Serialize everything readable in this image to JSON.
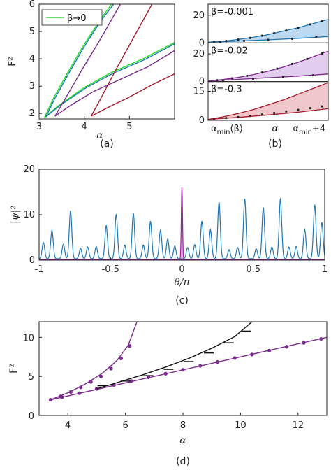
{
  "chart_data": [
    {
      "id": "a",
      "type": "line",
      "caption": "(a)",
      "xlabel": "α",
      "ylabel": "F²",
      "xlim": [
        3,
        6
      ],
      "ylim": [
        1.8,
        6
      ],
      "xticks": [
        "3",
        "4",
        "5"
      ],
      "yticks": [
        "2",
        "3",
        "4",
        "5",
        "6"
      ],
      "legend": {
        "label": "β→0",
        "color": "#22dd22",
        "placement": "top-left"
      },
      "series": [
        {
          "color": "#22dd22",
          "points": [
            [
              3.12,
              1.85
            ],
            [
              3.3,
              2.5
            ],
            [
              3.6,
              3.4
            ],
            [
              3.95,
              4.4
            ],
            [
              4.3,
              5.3
            ],
            [
              4.6,
              6.0
            ]
          ]
        },
        {
          "color": "#22dd22",
          "points": [
            [
              3.12,
              1.85
            ],
            [
              3.4,
              2.25
            ],
            [
              4.0,
              2.95
            ],
            [
              4.6,
              3.5
            ],
            [
              5.3,
              4.0
            ],
            [
              6.0,
              4.6
            ]
          ]
        },
        {
          "color": "#1f77b4",
          "points": [
            [
              3.15,
              1.88
            ],
            [
              3.35,
              2.55
            ],
            [
              3.65,
              3.45
            ],
            [
              4.0,
              4.45
            ],
            [
              4.35,
              5.35
            ],
            [
              4.65,
              6.0
            ]
          ]
        },
        {
          "color": "#1f77b4",
          "points": [
            [
              3.15,
              1.88
            ],
            [
              3.45,
              2.28
            ],
            [
              4.05,
              2.95
            ],
            [
              4.65,
              3.48
            ],
            [
              5.35,
              3.98
            ],
            [
              6.0,
              4.55
            ]
          ]
        },
        {
          "color": "#7b2a8e",
          "points": [
            [
              3.35,
              1.9
            ],
            [
              3.6,
              2.6
            ],
            [
              3.95,
              3.6
            ],
            [
              4.35,
              4.7
            ],
            [
              4.8,
              6.0
            ]
          ]
        },
        {
          "color": "#7b2a8e",
          "points": [
            [
              3.35,
              1.9
            ],
            [
              3.7,
              2.3
            ],
            [
              4.2,
              2.8
            ],
            [
              4.8,
              3.25
            ],
            [
              5.4,
              3.7
            ],
            [
              6.0,
              4.3
            ]
          ]
        },
        {
          "color": "#a31a2a",
          "points": [
            [
              4.15,
              1.9
            ],
            [
              4.35,
              2.5
            ],
            [
              4.7,
              3.6
            ],
            [
              5.1,
              4.8
            ],
            [
              5.5,
              6.0
            ]
          ]
        },
        {
          "color": "#a31a2a",
          "points": [
            [
              4.15,
              1.9
            ],
            [
              4.5,
              2.2
            ],
            [
              5.0,
              2.6
            ],
            [
              5.5,
              3.05
            ],
            [
              6.0,
              3.45
            ]
          ]
        }
      ]
    },
    {
      "id": "b",
      "type": "area",
      "caption": "(b)",
      "xlabel": "α",
      "xtick_left": "α_min(β)",
      "xtick_right": "α_min+4",
      "panels": [
        {
          "label": "β=-0.001",
          "color": "#1f77b4",
          "fill": "#bcd9ef",
          "ylim": [
            0,
            28
          ],
          "yticks": [
            "0",
            "20"
          ],
          "upper": [
            [
              0,
              0.5
            ],
            [
              0.5,
              1.2
            ],
            [
              1,
              2.5
            ],
            [
              1.5,
              4
            ],
            [
              2,
              6
            ],
            [
              2.5,
              8.5
            ],
            [
              3,
              11
            ],
            [
              3.5,
              14
            ],
            [
              4,
              17
            ]
          ],
          "lower": [
            [
              0,
              0.5
            ],
            [
              1,
              1.3
            ],
            [
              2,
              2.2
            ],
            [
              3,
              3.3
            ],
            [
              4,
              4.5
            ]
          ],
          "dots": [
            [
              0.2,
              0.6
            ],
            [
              0.6,
              1.4
            ],
            [
              1,
              2.4
            ],
            [
              1.4,
              3.6
            ],
            [
              1.8,
              5.2
            ],
            [
              2.2,
              7
            ],
            [
              2.6,
              8.9
            ],
            [
              3,
              11
            ],
            [
              3.4,
              13.4
            ],
            [
              3.8,
              15.8
            ],
            [
              0.4,
              0.7
            ],
            [
              1.2,
              1.5
            ],
            [
              2,
              2.2
            ],
            [
              2.8,
              3
            ],
            [
              3.6,
              4
            ]
          ]
        },
        {
          "label": "β=-0.02",
          "color": "#7b2a8e",
          "fill": "#e2cdee",
          "ylim": [
            0,
            28
          ],
          "yticks": [
            "0",
            "20"
          ],
          "upper": [
            [
              0,
              0.5
            ],
            [
              0.5,
              1.5
            ],
            [
              1,
              3
            ],
            [
              1.5,
              5
            ],
            [
              2,
              7.5
            ],
            [
              2.5,
              10.5
            ],
            [
              3,
              14
            ],
            [
              3.5,
              18
            ],
            [
              4,
              22
            ]
          ],
          "lower": [
            [
              0,
              0.5
            ],
            [
              1,
              1.6
            ],
            [
              2,
              2.8
            ],
            [
              3,
              4
            ],
            [
              4,
              5.5
            ]
          ],
          "dots": [
            [
              0.3,
              1
            ],
            [
              0.8,
              2.4
            ],
            [
              1.3,
              4.2
            ],
            [
              1.8,
              6.6
            ],
            [
              2.3,
              9.4
            ],
            [
              2.8,
              12.8
            ],
            [
              3.3,
              16.4
            ],
            [
              3.8,
              20.4
            ],
            [
              0.5,
              0.8
            ],
            [
              1.5,
              2
            ],
            [
              2.5,
              3.2
            ],
            [
              3.5,
              4.6
            ]
          ]
        },
        {
          "label": "β=-0.3",
          "color": "#a31a2a",
          "fill": "#f0c8cc",
          "ylim": [
            0,
            20
          ],
          "yticks": [
            "0",
            "15"
          ],
          "upper": [
            [
              0,
              0.5
            ],
            [
              0.5,
              1.8
            ],
            [
              1,
              3.5
            ],
            [
              1.5,
              5.5
            ],
            [
              2,
              8
            ],
            [
              2.5,
              10.5
            ],
            [
              3,
              13.5
            ],
            [
              3.5,
              16.5
            ],
            [
              4,
              19.5
            ]
          ],
          "lower": [
            [
              0,
              0.5
            ],
            [
              1,
              1.5
            ],
            [
              2,
              2.8
            ],
            [
              3,
              4.2
            ],
            [
              4,
              6
            ]
          ],
          "dots": [
            [
              0.2,
              0.7
            ],
            [
              0.6,
              1.2
            ],
            [
              1,
              1.7
            ],
            [
              1.4,
              2.3
            ],
            [
              1.8,
              3
            ],
            [
              2.2,
              3.8
            ],
            [
              2.6,
              4.6
            ],
            [
              3,
              5.4
            ],
            [
              3.4,
              6.3
            ],
            [
              3.8,
              7.2
            ]
          ]
        }
      ]
    },
    {
      "id": "c",
      "type": "line",
      "caption": "(c)",
      "xlabel": "θ/π",
      "ylabel": "|ψ|²",
      "xlim": [
        -1,
        1
      ],
      "ylim": [
        0,
        20
      ],
      "xticks": [
        "-1",
        "-0.5",
        "0",
        "0.5",
        "1"
      ],
      "yticks": [
        "0",
        "10",
        "20"
      ],
      "series": [
        {
          "color": "#1f77b4",
          "kind": "peaks",
          "peaks": [
            [
              -0.97,
              3.6
            ],
            [
              -0.91,
              6.3
            ],
            [
              -0.83,
              3.2
            ],
            [
              -0.78,
              10.6
            ],
            [
              -0.71,
              2.3
            ],
            [
              -0.66,
              2.6
            ],
            [
              -0.6,
              2.7
            ],
            [
              -0.53,
              7.3
            ],
            [
              -0.46,
              9.8
            ],
            [
              -0.4,
              3.0
            ],
            [
              -0.34,
              10.0
            ],
            [
              -0.27,
              3.0
            ],
            [
              -0.22,
              8.3
            ],
            [
              -0.15,
              6.3
            ],
            [
              -0.1,
              4.3
            ],
            [
              -0.05,
              2.8
            ],
            [
              0.04,
              2.5
            ],
            [
              0.09,
              3.1
            ],
            [
              0.14,
              8.3
            ],
            [
              0.2,
              6.4
            ],
            [
              0.26,
              12.5
            ],
            [
              0.33,
              2.0
            ],
            [
              0.39,
              2.5
            ],
            [
              0.44,
              13.2
            ],
            [
              0.52,
              2.2
            ],
            [
              0.57,
              11.3
            ],
            [
              0.63,
              2.6
            ],
            [
              0.69,
              13.3
            ],
            [
              0.75,
              2.6
            ],
            [
              0.8,
              2.7
            ],
            [
              0.86,
              6.4
            ],
            [
              0.93,
              11.9
            ],
            [
              0.98,
              8.0
            ]
          ]
        },
        {
          "color": "#a020a0",
          "kind": "spike",
          "peaks": [
            [
              0,
              16
            ]
          ]
        },
        {
          "color": "#a020a0",
          "kind": "baseline",
          "value": 0.08
        }
      ]
    },
    {
      "id": "d",
      "type": "scatter",
      "caption": "(d)",
      "xlabel": "α",
      "ylabel": "F²",
      "xlim": [
        3,
        13
      ],
      "ylim": [
        0,
        12
      ],
      "xticks": [
        "4",
        "6",
        "8",
        "10",
        "12"
      ],
      "yticks": [
        "0",
        "5",
        "10"
      ],
      "series": [
        {
          "color": "#7b2a8e",
          "kind": "line",
          "points": [
            [
              3.4,
              2.0
            ],
            [
              4,
              2.9
            ],
            [
              4.6,
              4.0
            ],
            [
              5.2,
              5.4
            ],
            [
              5.7,
              7.0
            ],
            [
              6.1,
              9.0
            ],
            [
              6.4,
              12.0
            ]
          ]
        },
        {
          "color": "#7b2a8e",
          "kind": "dots",
          "points": [
            [
              3.4,
              2.0
            ],
            [
              3.75,
              2.45
            ],
            [
              4.1,
              3.0
            ],
            [
              4.45,
              3.6
            ],
            [
              4.8,
              4.3
            ],
            [
              5.15,
              5.0
            ],
            [
              5.5,
              6.0
            ],
            [
              5.85,
              7.3
            ],
            [
              6.15,
              8.9
            ]
          ]
        },
        {
          "color": "#7b2a8e",
          "kind": "line",
          "points": [
            [
              3.4,
              2.0
            ],
            [
              13,
              10.0
            ]
          ]
        },
        {
          "color": "#7b2a8e",
          "kind": "dots",
          "points": [
            [
              3.8,
              2.35
            ],
            [
              4.4,
              2.85
            ],
            [
              5.0,
              3.4
            ],
            [
              5.6,
              3.9
            ],
            [
              6.2,
              4.4
            ],
            [
              6.8,
              4.9
            ],
            [
              7.4,
              5.35
            ],
            [
              8.0,
              5.85
            ],
            [
              8.6,
              6.35
            ],
            [
              9.2,
              6.85
            ],
            [
              9.8,
              7.35
            ],
            [
              10.4,
              7.8
            ],
            [
              11.0,
              8.3
            ],
            [
              11.6,
              8.8
            ],
            [
              12.2,
              9.3
            ],
            [
              12.8,
              9.8
            ]
          ]
        },
        {
          "color": "#111111",
          "kind": "line",
          "points": [
            [
              5.0,
              3.4
            ],
            [
              5.8,
              4.3
            ],
            [
              6.6,
              5.2
            ],
            [
              7.4,
              6.2
            ],
            [
              8.2,
              7.3
            ],
            [
              9.0,
              8.6
            ],
            [
              9.8,
              10.1
            ],
            [
              10.4,
              12.0
            ]
          ]
        },
        {
          "color": "#111111",
          "kind": "dashes",
          "points": [
            [
              5.2,
              3.8
            ],
            [
              6.0,
              4.4
            ],
            [
              6.8,
              5.1
            ],
            [
              7.5,
              5.9
            ],
            [
              8.2,
              6.9
            ],
            [
              8.9,
              8.0
            ],
            [
              9.6,
              9.3
            ],
            [
              10.2,
              10.8
            ]
          ]
        }
      ]
    }
  ]
}
